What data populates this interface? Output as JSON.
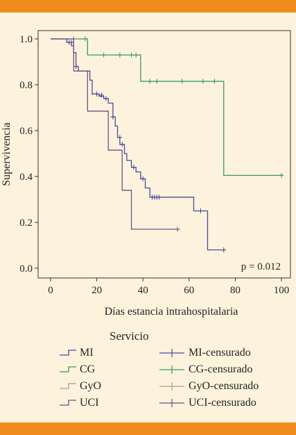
{
  "colors": {
    "band": "#f08c1e",
    "background": "#fdf3dd",
    "MI": "#4a4a9a",
    "CG": "#3a9a5e",
    "GyO": "#a0a878",
    "UCI": "#7a4a82"
  },
  "chart_data": {
    "type": "line",
    "step": true,
    "xlabel": "Días estancia intrahospitalaria",
    "ylabel": "Supervivencia",
    "xlim": [
      0,
      100
    ],
    "ylim": [
      0.0,
      1.0
    ],
    "xticks": [
      "0",
      "20",
      "40",
      "60",
      "80",
      "100"
    ],
    "yticks": [
      "0.0",
      "0.2",
      "0.4",
      "0.6",
      "0.8",
      "1.0"
    ],
    "grid": false,
    "annotation": "p = 0.012",
    "series": [
      {
        "name": "MI",
        "color": "#4a4a9a",
        "steps": [
          [
            0,
            1.0
          ],
          [
            7,
            0.985
          ],
          [
            9,
            0.97
          ],
          [
            10,
            0.94
          ],
          [
            11,
            0.88
          ],
          [
            12,
            0.86
          ],
          [
            17,
            0.82
          ],
          [
            18,
            0.76
          ],
          [
            21,
            0.75
          ],
          [
            23,
            0.74
          ],
          [
            25,
            0.72
          ],
          [
            27,
            0.66
          ],
          [
            28,
            0.62
          ],
          [
            29,
            0.57
          ],
          [
            30,
            0.54
          ],
          [
            32,
            0.5
          ],
          [
            33,
            0.47
          ],
          [
            35,
            0.44
          ],
          [
            37,
            0.42
          ],
          [
            39,
            0.39
          ],
          [
            41,
            0.35
          ],
          [
            43,
            0.31
          ],
          [
            62,
            0.25
          ],
          [
            68,
            0.08
          ],
          [
            75,
            0.08
          ]
        ],
        "censored": [
          [
            8,
            0.985
          ],
          [
            9,
            0.985
          ],
          [
            11,
            0.88
          ],
          [
            20,
            0.76
          ],
          [
            22,
            0.755
          ],
          [
            24,
            0.74
          ],
          [
            27,
            0.66
          ],
          [
            30,
            0.57
          ],
          [
            31,
            0.54
          ],
          [
            36,
            0.44
          ],
          [
            40,
            0.39
          ],
          [
            44,
            0.31
          ],
          [
            45,
            0.31
          ],
          [
            46,
            0.31
          ],
          [
            47,
            0.31
          ],
          [
            65,
            0.25
          ],
          [
            75,
            0.08
          ]
        ]
      },
      {
        "name": "CG",
        "color": "#3a9a5e",
        "steps": [
          [
            0,
            1.0
          ],
          [
            16,
            0.93
          ],
          [
            39,
            0.815
          ],
          [
            75,
            0.405
          ],
          [
            100,
            0.405
          ]
        ],
        "censored": [
          [
            10,
            1.0
          ],
          [
            15,
            1.0
          ],
          [
            23,
            0.93
          ],
          [
            30,
            0.93
          ],
          [
            35,
            0.93
          ],
          [
            37,
            0.93
          ],
          [
            43,
            0.815
          ],
          [
            46,
            0.815
          ],
          [
            57,
            0.815
          ],
          [
            66,
            0.815
          ],
          [
            71,
            0.815
          ],
          [
            100,
            0.405
          ]
        ]
      },
      {
        "name": "UCI",
        "color": "#7a4a82",
        "steps": [
          [
            0,
            1.0
          ],
          [
            10,
            0.86
          ],
          [
            16,
            0.685
          ],
          [
            25,
            0.515
          ],
          [
            31,
            0.34
          ],
          [
            35,
            0.17
          ],
          [
            55,
            0.17
          ]
        ],
        "censored": [
          [
            55,
            0.17
          ]
        ]
      }
    ]
  },
  "legend": {
    "title": "Servicio",
    "left": [
      {
        "label": "MI",
        "key": "MI"
      },
      {
        "label": "CG",
        "key": "CG"
      },
      {
        "label": "GyO",
        "key": "GyO"
      },
      {
        "label": "UCI",
        "key": "UCI"
      }
    ],
    "right": [
      {
        "label": "MI-censurado",
        "key": "MI"
      },
      {
        "label": "CG-censurado",
        "key": "CG"
      },
      {
        "label": "GyO-censurado",
        "key": "GyO"
      },
      {
        "label": "UCI-censurado",
        "key": "UCI"
      }
    ]
  }
}
